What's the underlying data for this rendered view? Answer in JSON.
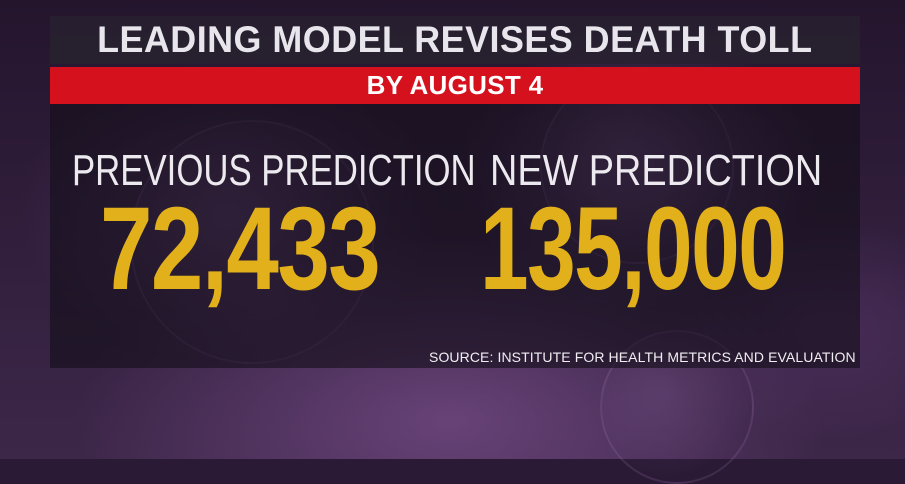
{
  "header": {
    "title": "LEADING MODEL REVISES DEATH TOLL",
    "subtitle": "BY AUGUST 4"
  },
  "predictions": {
    "previous": {
      "label": "PREVIOUS PREDICTION",
      "value": "72,433"
    },
    "new": {
      "label": "NEW PREDICTION",
      "value": "135,000"
    }
  },
  "footer": {
    "source": "SOURCE: INSTITUTE FOR HEALTH METRICS AND EVALUATION"
  },
  "colors": {
    "banner_red": "#d4111d",
    "number_gold": "#e2b01a",
    "background_purple": "#2f1d3a"
  }
}
